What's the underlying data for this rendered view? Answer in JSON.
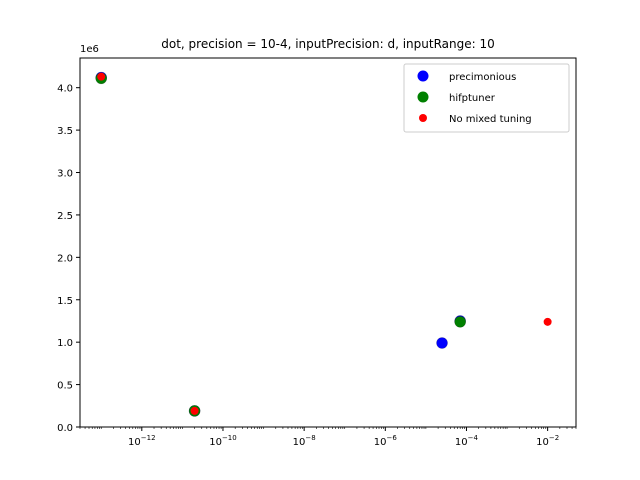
{
  "chart_data": {
    "type": "scatter",
    "title": "dot, precision = 10-4, inputPrecision: d, inputRange: 10",
    "xlabel": "",
    "ylabel": "",
    "x_scale": "log",
    "xlim": [
      3e-14,
      0.05
    ],
    "ylim": [
      0,
      4350000.0
    ],
    "y_offset_label": "1e6",
    "x_ticks": [
      {
        "value": 1e-12,
        "base": "10",
        "exp": "−12"
      },
      {
        "value": 1e-10,
        "base": "10",
        "exp": "−10"
      },
      {
        "value": 1e-08,
        "base": "10",
        "exp": "−8"
      },
      {
        "value": 1e-06,
        "base": "10",
        "exp": "−6"
      },
      {
        "value": 0.0001,
        "base": "10",
        "exp": "−4"
      },
      {
        "value": 0.01,
        "base": "10",
        "exp": "−2"
      }
    ],
    "y_ticks": [
      {
        "value": 0,
        "label": "0.0"
      },
      {
        "value": 500000,
        "label": "0.5"
      },
      {
        "value": 1000000,
        "label": "1.0"
      },
      {
        "value": 1500000,
        "label": "1.5"
      },
      {
        "value": 2000000,
        "label": "2.0"
      },
      {
        "value": 2500000,
        "label": "2.5"
      },
      {
        "value": 3000000,
        "label": "3.0"
      },
      {
        "value": 3500000,
        "label": "3.5"
      },
      {
        "value": 4000000,
        "label": "4.0"
      }
    ],
    "grid": false,
    "legend_position": "top-right",
    "series": [
      {
        "name": "precimonious",
        "color": "#0000ff",
        "size": "large",
        "points": [
          {
            "x": 1e-13,
            "y": 4120000
          },
          {
            "x": 2e-11,
            "y": 190000
          },
          {
            "x": 2.5e-05,
            "y": 990000
          },
          {
            "x": 7e-05,
            "y": 1250000
          }
        ]
      },
      {
        "name": "hifptuner",
        "color": "#008000",
        "size": "large",
        "points": [
          {
            "x": 1e-13,
            "y": 4110000
          },
          {
            "x": 2e-11,
            "y": 190000
          },
          {
            "x": 7e-05,
            "y": 1240000
          }
        ]
      },
      {
        "name": "No mixed tuning",
        "color": "#ff0000",
        "size": "small",
        "points": [
          {
            "x": 1e-13,
            "y": 4130000
          },
          {
            "x": 2e-11,
            "y": 190000
          },
          {
            "x": 0.01,
            "y": 1240000
          }
        ]
      }
    ]
  }
}
